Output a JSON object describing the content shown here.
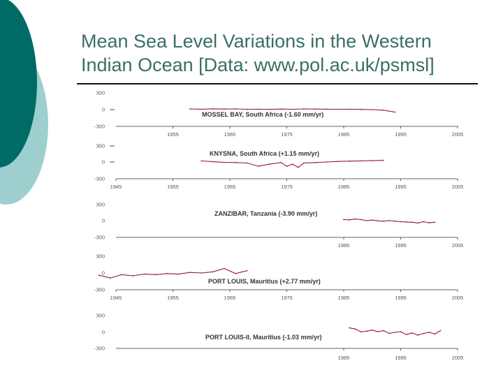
{
  "slide": {
    "title_line1": "Mean Sea Level Variations in the Western",
    "title_line2": "Indian Ocean [Data: www.pol.ac.uk/psmsl]"
  },
  "colors": {
    "teal_dark": "#006b66",
    "teal_light": "#9ecfcf",
    "title_text": "#3a6e68",
    "series_red": "#b0172e",
    "series_dark": "#333355"
  },
  "chart_data": [
    {
      "type": "line",
      "title": "MOSSEL BAY, South Africa (-1.60 mm/yr)",
      "y_ticks": [
        "300",
        "0",
        "-300"
      ],
      "x_ticks": [
        "1955",
        "1965",
        "1975",
        "1985",
        "1995",
        "2005"
      ],
      "xlim": [
        1945,
        2005
      ],
      "ylim": [
        -300,
        300
      ],
      "series": [
        {
          "x": [
            1958,
            1960,
            1962,
            1964,
            1966,
            1968,
            1970,
            1972,
            1974,
            1976,
            1978,
            1980,
            1982,
            1984,
            1986,
            1988,
            1990,
            1992,
            1994
          ],
          "y": [
            12,
            8,
            14,
            10,
            12,
            6,
            8,
            4,
            10,
            6,
            12,
            10,
            8,
            6,
            8,
            4,
            0,
            -10,
            -45
          ]
        }
      ]
    },
    {
      "type": "line",
      "title": "KNYSNA, South Africa (+1.15 mm/yr)",
      "y_ticks": [
        "300",
        "0",
        "-300"
      ],
      "x_ticks": [
        "1945",
        "1955",
        "1965",
        "1975",
        "1985",
        "1995",
        "2005"
      ],
      "xlim": [
        1945,
        2005
      ],
      "ylim": [
        -300,
        300
      ],
      "series": [
        {
          "x": [
            1960,
            1962,
            1964,
            1966,
            1968,
            1970,
            1972,
            1974,
            1975,
            1976,
            1977,
            1978,
            1980,
            1982,
            1984,
            1986,
            1988,
            1990,
            1992
          ],
          "y": [
            20,
            5,
            -8,
            -10,
            -20,
            -80,
            -40,
            -10,
            -80,
            -40,
            -100,
            -20,
            -10,
            0,
            10,
            15,
            20,
            25,
            30
          ]
        }
      ]
    },
    {
      "type": "line",
      "title": "ZANZIBAR, Tanzania (-3.90 mm/yr)",
      "y_ticks": [
        "300",
        "0",
        "-300"
      ],
      "x_ticks": [
        "1985",
        "1995",
        "2005"
      ],
      "xlim": [
        1945,
        2005
      ],
      "ylim": [
        -300,
        300
      ],
      "series": [
        {
          "x": [
            1985,
            1986,
            1987,
            1988,
            1989,
            1990,
            1991,
            1992,
            1993,
            1994,
            1995,
            1996,
            1997,
            1998,
            1999,
            2000,
            2001
          ],
          "y": [
            20,
            15,
            30,
            20,
            0,
            10,
            -5,
            -10,
            0,
            -10,
            -20,
            -25,
            -30,
            -45,
            -20,
            -40,
            -30
          ]
        }
      ]
    },
    {
      "type": "line",
      "title": "PORT LOUIS, Mauritius (+2.77 mm/yr)",
      "y_ticks": [
        "300",
        "0",
        "-300"
      ],
      "x_ticks": [
        "1945",
        "1955",
        "1965",
        "1975",
        "1985",
        "1995",
        "2005"
      ],
      "xlim": [
        1945,
        2005
      ],
      "ylim": [
        -300,
        300
      ],
      "series": [
        {
          "x": [
            1942,
            1944,
            1946,
            1948,
            1950,
            1952,
            1954,
            1956,
            1958,
            1960,
            1962,
            1964,
            1966,
            1968
          ],
          "y": [
            -40,
            -90,
            -30,
            -50,
            -20,
            -30,
            -10,
            -20,
            10,
            0,
            20,
            80,
            -10,
            40
          ]
        }
      ]
    },
    {
      "type": "line",
      "title": "PORT LOUIS-II, Mauritius (-1.03 mm/yr)",
      "y_ticks": [
        "300",
        "0",
        "-300"
      ],
      "x_ticks": [
        "1985",
        "1995",
        "2005"
      ],
      "xlim": [
        1945,
        2005
      ],
      "ylim": [
        -300,
        300
      ],
      "series": [
        {
          "x": [
            1986,
            1987,
            1988,
            1989,
            1990,
            1991,
            1992,
            1993,
            1994,
            1995,
            1996,
            1997,
            1998,
            1999,
            2000,
            2001,
            2002
          ],
          "y": [
            80,
            60,
            10,
            20,
            40,
            10,
            30,
            -20,
            0,
            10,
            -40,
            -10,
            -50,
            -20,
            0,
            -30,
            30
          ]
        }
      ]
    }
  ]
}
